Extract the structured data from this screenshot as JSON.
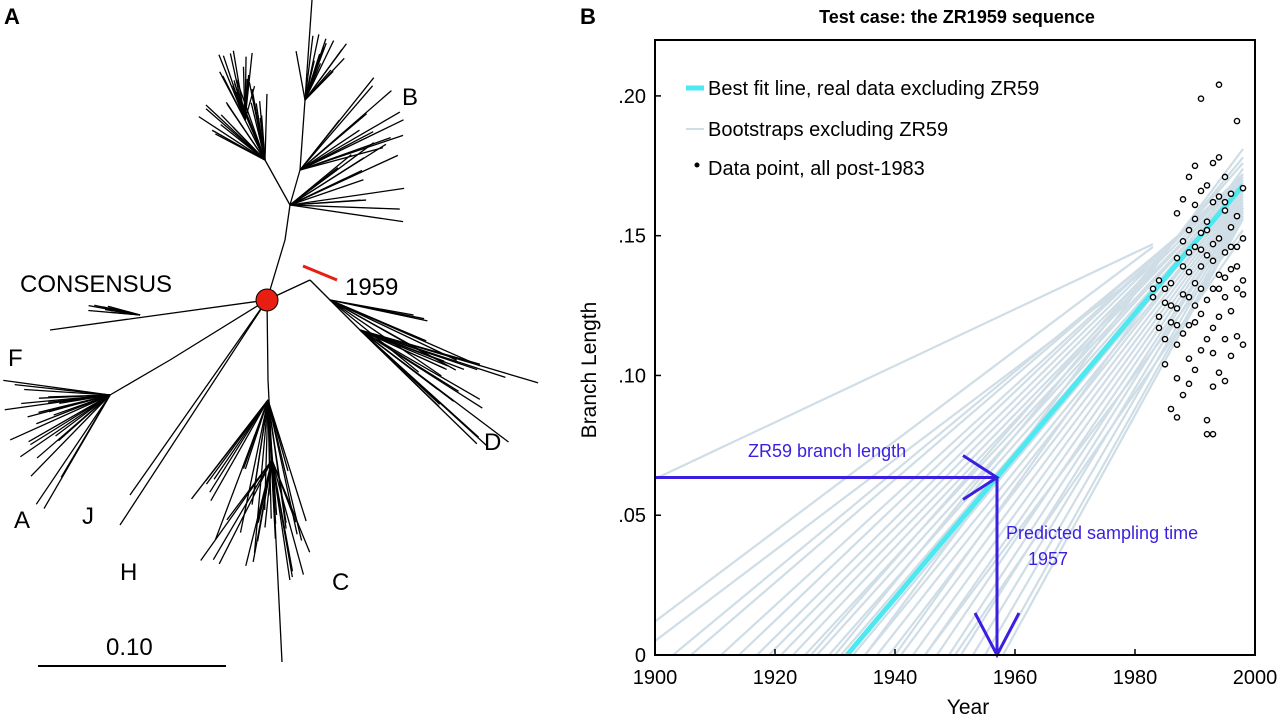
{
  "panel_a": {
    "letter": "A",
    "consensus_label": "CONSENSUS",
    "sample_label": "1959",
    "clades": [
      "B",
      "F",
      "D",
      "A",
      "J",
      "H",
      "C"
    ],
    "scale_bar_label": "0.10",
    "colors": {
      "consensus": "#e81e12",
      "sample": "#3a1fe0",
      "branch": "#000000",
      "sample_branch": "#e81e12"
    }
  },
  "panel_b": {
    "letter": "B",
    "annotations": {
      "zr59_branch_length": "ZR59 branch length",
      "predicted_line1": "Predicted sampling time",
      "predicted_line2": "1957"
    },
    "colors": {
      "fit": "#4de8f0",
      "bootstrap": "#cfdde6",
      "arrow": "#3a1fe0",
      "point": "#000000"
    }
  },
  "chart_data": {
    "type": "scatter",
    "title": "Test case: the ZR1959 sequence",
    "xlabel": "Year",
    "ylabel": "Branch Length",
    "xlim": [
      1900,
      2000
    ],
    "ylim": [
      0,
      0.22
    ],
    "x_ticks": [
      1900,
      1920,
      1940,
      1960,
      1980,
      2000
    ],
    "x_tick_labels": [
      "1900",
      "1920",
      "1940",
      "1960",
      "1980",
      "2000"
    ],
    "y_ticks": [
      0,
      0.05,
      0.1,
      0.15,
      0.2
    ],
    "y_tick_labels": [
      "0",
      ".05",
      ".10",
      ".15",
      ".20"
    ],
    "legend_position": "top-left",
    "legend": [
      {
        "label": "Best fit line, real data excluding ZR59",
        "style": "fit"
      },
      {
        "label": "Bootstraps excluding ZR59",
        "style": "bootstrap"
      },
      {
        "label": "Data point, all post-1983",
        "style": "point"
      }
    ],
    "best_fit": {
      "x": [
        1932,
        1998
      ],
      "y": [
        0,
        0.168
      ]
    },
    "bootstrap_lines": [
      {
        "x": [
          1900,
          1983
        ],
        "y": [
          0.063,
          0.147
        ]
      },
      {
        "x": [
          1900,
          1983
        ],
        "y": [
          0.012,
          0.146
        ]
      },
      {
        "x": [
          1900,
          1985
        ],
        "y": [
          0.005,
          0.143
        ]
      },
      {
        "x": [
          1903,
          1998
        ],
        "y": [
          0,
          0.169
        ]
      },
      {
        "x": [
          1906,
          1998
        ],
        "y": [
          0,
          0.17
        ]
      },
      {
        "x": [
          1911,
          1998
        ],
        "y": [
          0,
          0.171
        ]
      },
      {
        "x": [
          1914,
          1998
        ],
        "y": [
          0,
          0.172
        ]
      },
      {
        "x": [
          1917,
          1998
        ],
        "y": [
          0,
          0.172
        ]
      },
      {
        "x": [
          1919,
          1998
        ],
        "y": [
          0,
          0.171
        ]
      },
      {
        "x": [
          1921,
          1998
        ],
        "y": [
          0,
          0.17
        ]
      },
      {
        "x": [
          1923,
          1998
        ],
        "y": [
          0,
          0.17
        ]
      },
      {
        "x": [
          1925,
          1998
        ],
        "y": [
          0,
          0.169
        ]
      },
      {
        "x": [
          1927,
          1998
        ],
        "y": [
          0,
          0.169
        ]
      },
      {
        "x": [
          1929,
          1998
        ],
        "y": [
          0,
          0.168
        ]
      },
      {
        "x": [
          1931,
          1998
        ],
        "y": [
          0,
          0.168
        ]
      },
      {
        "x": [
          1933,
          1998
        ],
        "y": [
          0,
          0.167
        ]
      },
      {
        "x": [
          1935,
          1998
        ],
        "y": [
          0,
          0.166
        ]
      },
      {
        "x": [
          1937,
          1998
        ],
        "y": [
          0,
          0.166
        ]
      },
      {
        "x": [
          1939,
          1998
        ],
        "y": [
          0,
          0.165
        ]
      },
      {
        "x": [
          1941,
          1998
        ],
        "y": [
          0,
          0.164
        ]
      },
      {
        "x": [
          1943,
          1998
        ],
        "y": [
          0,
          0.163
        ]
      },
      {
        "x": [
          1945,
          1998
        ],
        "y": [
          0,
          0.162
        ]
      },
      {
        "x": [
          1947,
          1998
        ],
        "y": [
          0,
          0.161
        ]
      },
      {
        "x": [
          1949,
          1998
        ],
        "y": [
          0,
          0.16
        ]
      },
      {
        "x": [
          1951,
          1998
        ],
        "y": [
          0,
          0.16
        ]
      },
      {
        "x": [
          1953,
          1998
        ],
        "y": [
          0,
          0.159
        ]
      },
      {
        "x": [
          1955,
          1998
        ],
        "y": [
          0,
          0.158
        ]
      },
      {
        "x": [
          1957,
          1998
        ],
        "y": [
          0,
          0.157
        ]
      },
      {
        "x": [
          1958,
          1998
        ],
        "y": [
          0,
          0.156
        ]
      },
      {
        "x": [
          1926,
          1998
        ],
        "y": [
          0,
          0.176
        ]
      },
      {
        "x": [
          1930,
          1998
        ],
        "y": [
          0,
          0.178
        ]
      },
      {
        "x": [
          1935,
          1998
        ],
        "y": [
          0,
          0.181
        ]
      },
      {
        "x": [
          1940,
          1998
        ],
        "y": [
          0,
          0.174
        ]
      },
      {
        "x": [
          1945,
          1998
        ],
        "y": [
          0,
          0.152
        ]
      },
      {
        "x": [
          1950,
          1998
        ],
        "y": [
          0,
          0.15
        ]
      }
    ],
    "zr59_point": {
      "x": 1957,
      "y": 0.0635
    },
    "points": [
      {
        "x": 1983,
        "y": 0.128
      },
      {
        "x": 1983,
        "y": 0.131
      },
      {
        "x": 1984,
        "y": 0.134
      },
      {
        "x": 1984,
        "y": 0.121
      },
      {
        "x": 1985,
        "y": 0.113
      },
      {
        "x": 1985,
        "y": 0.104
      },
      {
        "x": 1985,
        "y": 0.126
      },
      {
        "x": 1986,
        "y": 0.088
      },
      {
        "x": 1986,
        "y": 0.119
      },
      {
        "x": 1986,
        "y": 0.133
      },
      {
        "x": 1987,
        "y": 0.085
      },
      {
        "x": 1987,
        "y": 0.099
      },
      {
        "x": 1987,
        "y": 0.111
      },
      {
        "x": 1987,
        "y": 0.124
      },
      {
        "x": 1987,
        "y": 0.142
      },
      {
        "x": 1987,
        "y": 0.158
      },
      {
        "x": 1988,
        "y": 0.093
      },
      {
        "x": 1988,
        "y": 0.115
      },
      {
        "x": 1988,
        "y": 0.129
      },
      {
        "x": 1988,
        "y": 0.148
      },
      {
        "x": 1988,
        "y": 0.163
      },
      {
        "x": 1989,
        "y": 0.097
      },
      {
        "x": 1989,
        "y": 0.106
      },
      {
        "x": 1989,
        "y": 0.118
      },
      {
        "x": 1989,
        "y": 0.137
      },
      {
        "x": 1989,
        "y": 0.152
      },
      {
        "x": 1989,
        "y": 0.171
      },
      {
        "x": 1990,
        "y": 0.102
      },
      {
        "x": 1990,
        "y": 0.125
      },
      {
        "x": 1990,
        "y": 0.133
      },
      {
        "x": 1990,
        "y": 0.146
      },
      {
        "x": 1990,
        "y": 0.161
      },
      {
        "x": 1990,
        "y": 0.175
      },
      {
        "x": 1991,
        "y": 0.109
      },
      {
        "x": 1991,
        "y": 0.122
      },
      {
        "x": 1991,
        "y": 0.139
      },
      {
        "x": 1991,
        "y": 0.151
      },
      {
        "x": 1991,
        "y": 0.166
      },
      {
        "x": 1991,
        "y": 0.199
      },
      {
        "x": 1992,
        "y": 0.079
      },
      {
        "x": 1992,
        "y": 0.084
      },
      {
        "x": 1992,
        "y": 0.113
      },
      {
        "x": 1992,
        "y": 0.127
      },
      {
        "x": 1992,
        "y": 0.143
      },
      {
        "x": 1992,
        "y": 0.155
      },
      {
        "x": 1992,
        "y": 0.168
      },
      {
        "x": 1993,
        "y": 0.079
      },
      {
        "x": 1993,
        "y": 0.096
      },
      {
        "x": 1993,
        "y": 0.117
      },
      {
        "x": 1993,
        "y": 0.131
      },
      {
        "x": 1993,
        "y": 0.147
      },
      {
        "x": 1993,
        "y": 0.162
      },
      {
        "x": 1993,
        "y": 0.176
      },
      {
        "x": 1994,
        "y": 0.101
      },
      {
        "x": 1994,
        "y": 0.121
      },
      {
        "x": 1994,
        "y": 0.136
      },
      {
        "x": 1994,
        "y": 0.149
      },
      {
        "x": 1994,
        "y": 0.164
      },
      {
        "x": 1994,
        "y": 0.178
      },
      {
        "x": 1994,
        "y": 0.204
      },
      {
        "x": 1995,
        "y": 0.098
      },
      {
        "x": 1995,
        "y": 0.113
      },
      {
        "x": 1995,
        "y": 0.128
      },
      {
        "x": 1995,
        "y": 0.144
      },
      {
        "x": 1995,
        "y": 0.159
      },
      {
        "x": 1995,
        "y": 0.171
      },
      {
        "x": 1996,
        "y": 0.107
      },
      {
        "x": 1996,
        "y": 0.123
      },
      {
        "x": 1996,
        "y": 0.138
      },
      {
        "x": 1996,
        "y": 0.153
      },
      {
        "x": 1996,
        "y": 0.165
      },
      {
        "x": 1997,
        "y": 0.114
      },
      {
        "x": 1997,
        "y": 0.131
      },
      {
        "x": 1997,
        "y": 0.146
      },
      {
        "x": 1997,
        "y": 0.157
      },
      {
        "x": 1997,
        "y": 0.191
      },
      {
        "x": 1998,
        "y": 0.111
      },
      {
        "x": 1998,
        "y": 0.129
      },
      {
        "x": 1998,
        "y": 0.134
      },
      {
        "x": 1998,
        "y": 0.149
      },
      {
        "x": 1998,
        "y": 0.167
      },
      {
        "x": 1984,
        "y": 0.117
      },
      {
        "x": 1985,
        "y": 0.131
      },
      {
        "x": 1986,
        "y": 0.125
      },
      {
        "x": 1987,
        "y": 0.118
      },
      {
        "x": 1988,
        "y": 0.139
      },
      {
        "x": 1989,
        "y": 0.128
      },
      {
        "x": 1990,
        "y": 0.119
      },
      {
        "x": 1991,
        "y": 0.145
      },
      {
        "x": 1992,
        "y": 0.152
      },
      {
        "x": 1993,
        "y": 0.141
      },
      {
        "x": 1994,
        "y": 0.131
      },
      {
        "x": 1995,
        "y": 0.135
      },
      {
        "x": 1996,
        "y": 0.146
      },
      {
        "x": 1997,
        "y": 0.139
      },
      {
        "x": 1993,
        "y": 0.108
      },
      {
        "x": 1991,
        "y": 0.131
      },
      {
        "x": 1989,
        "y": 0.144
      },
      {
        "x": 1995,
        "y": 0.162
      },
      {
        "x": 1990,
        "y": 0.156
      }
    ]
  }
}
